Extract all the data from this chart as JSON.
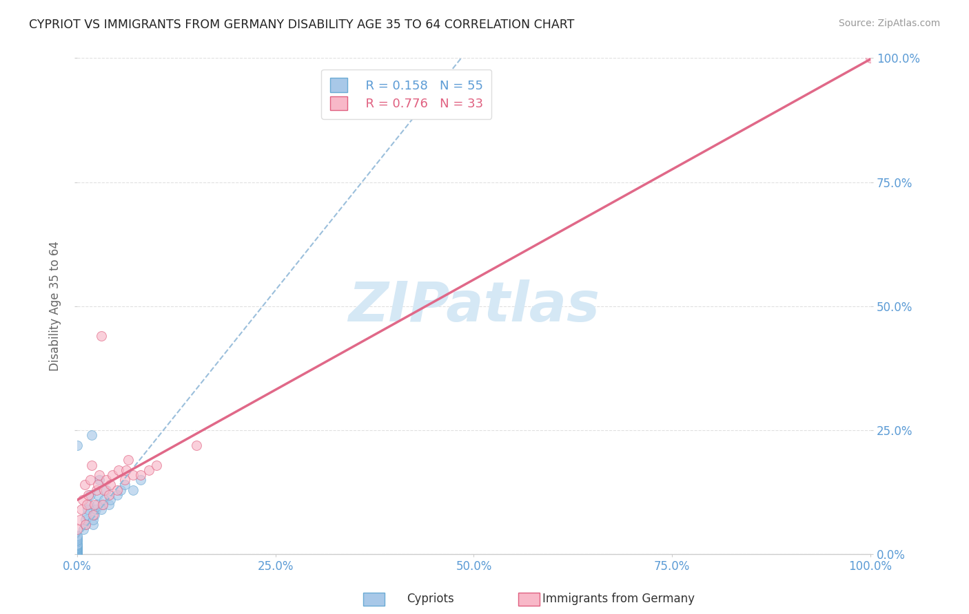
{
  "title": "CYPRIOT VS IMMIGRANTS FROM GERMANY DISABILITY AGE 35 TO 64 CORRELATION CHART",
  "source": "Source: ZipAtlas.com",
  "ylabel": "Disability Age 35 to 64",
  "xlim": [
    0.0,
    1.0
  ],
  "ylim": [
    0.0,
    1.0
  ],
  "xtick_labels": [
    "0.0%",
    "25.0%",
    "50.0%",
    "75.0%",
    "100.0%"
  ],
  "xtick_positions": [
    0.0,
    0.25,
    0.5,
    0.75,
    1.0
  ],
  "ytick_labels": [
    "0.0%",
    "25.0%",
    "50.0%",
    "75.0%",
    "100.0%"
  ],
  "ytick_positions": [
    0.0,
    0.25,
    0.5,
    0.75,
    1.0
  ],
  "cypriots_x": [
    0.0,
    0.0,
    0.0,
    0.0,
    0.0,
    0.0,
    0.0,
    0.0,
    0.0,
    0.0,
    0.0,
    0.0,
    0.0,
    0.0,
    0.0,
    0.0,
    0.0,
    0.0,
    0.0,
    0.0,
    0.0,
    0.0,
    0.0,
    0.0,
    0.0,
    0.0,
    0.0,
    0.0,
    0.0,
    0.008,
    0.01,
    0.01,
    0.012,
    0.013,
    0.015,
    0.016,
    0.018,
    0.02,
    0.02,
    0.022,
    0.023,
    0.025,
    0.026,
    0.028,
    0.03,
    0.032,
    0.034,
    0.036,
    0.04,
    0.042,
    0.05,
    0.055,
    0.06,
    0.07,
    0.08
  ],
  "cypriots_y": [
    0.0,
    0.001,
    0.002,
    0.003,
    0.004,
    0.005,
    0.006,
    0.007,
    0.008,
    0.009,
    0.01,
    0.011,
    0.012,
    0.013,
    0.014,
    0.015,
    0.016,
    0.017,
    0.018,
    0.019,
    0.02,
    0.022,
    0.025,
    0.028,
    0.03,
    0.032,
    0.035,
    0.038,
    0.22,
    0.05,
    0.06,
    0.07,
    0.08,
    0.09,
    0.1,
    0.12,
    0.24,
    0.06,
    0.07,
    0.08,
    0.09,
    0.1,
    0.12,
    0.15,
    0.09,
    0.1,
    0.11,
    0.13,
    0.1,
    0.11,
    0.12,
    0.13,
    0.14,
    0.13,
    0.15
  ],
  "germany_x": [
    0.0,
    0.003,
    0.005,
    0.007,
    0.009,
    0.01,
    0.012,
    0.014,
    0.016,
    0.018,
    0.02,
    0.022,
    0.024,
    0.026,
    0.028,
    0.03,
    0.032,
    0.034,
    0.036,
    0.04,
    0.042,
    0.044,
    0.05,
    0.052,
    0.06,
    0.062,
    0.064,
    0.07,
    0.08,
    0.09,
    0.1,
    0.15,
    1.0
  ],
  "germany_y": [
    0.05,
    0.07,
    0.09,
    0.11,
    0.14,
    0.06,
    0.1,
    0.12,
    0.15,
    0.18,
    0.08,
    0.1,
    0.13,
    0.14,
    0.16,
    0.44,
    0.1,
    0.13,
    0.15,
    0.12,
    0.14,
    0.16,
    0.13,
    0.17,
    0.15,
    0.17,
    0.19,
    0.16,
    0.16,
    0.17,
    0.18,
    0.22,
    1.0
  ],
  "R_cypriot": 0.158,
  "N_cypriot": 55,
  "R_germany": 0.776,
  "N_germany": 33,
  "cypriot_scatter_color": "#a8c8e8",
  "cypriot_edge_color": "#6aaad4",
  "germany_scatter_color": "#f8b8c8",
  "germany_edge_color": "#e06080",
  "cypriot_line_color": "#90b8d8",
  "germany_line_color": "#e06888",
  "tick_label_color": "#5b9bd5",
  "watermark_color": "#d5e8f5",
  "background_color": "#ffffff",
  "grid_color": "#e0e0e0",
  "watermark_text": "ZIPatlas"
}
